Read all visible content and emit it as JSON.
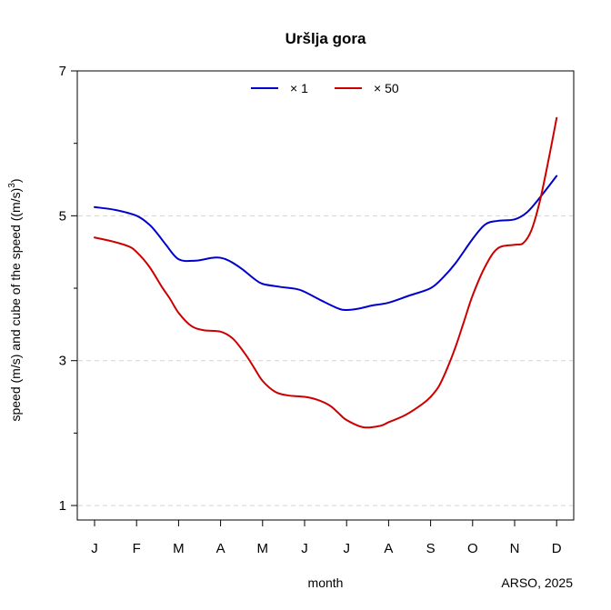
{
  "chart_data": {
    "type": "line",
    "title": "Uršlja gora",
    "xlabel": "month",
    "ylabel": "speed (m/s) and cube of the speed ((m/s)",
    "ylabel_superscript": "3",
    "ylabel_suffix": ")",
    "credit": "ARSO, 2025",
    "categories": [
      "J",
      "F",
      "M",
      "A",
      "M",
      "J",
      "J",
      "A",
      "S",
      "O",
      "N",
      "D"
    ],
    "ylim": [
      0.8,
      7.0
    ],
    "yticks": [
      1,
      3,
      5,
      7
    ],
    "yticks_minor": [
      2,
      4,
      6
    ],
    "gridlines": [
      1,
      3,
      5
    ],
    "legend_position": "top",
    "series": [
      {
        "name": "× 1",
        "color": "#0000cd",
        "x": [
          0,
          0.5,
          1,
          1.3,
          1.5,
          1.7,
          2,
          2.4,
          2.8,
          3,
          3.2,
          3.5,
          3.8,
          4,
          4.4,
          4.8,
          5,
          5.4,
          5.8,
          6,
          6.3,
          6.6,
          7,
          7.5,
          8,
          8.3,
          8.6,
          9,
          9.3,
          9.6,
          10,
          10.3,
          10.6,
          11
        ],
        "values": [
          5.12,
          5.08,
          5.0,
          4.88,
          4.75,
          4.6,
          4.4,
          4.38,
          4.42,
          4.42,
          4.38,
          4.27,
          4.13,
          4.06,
          4.02,
          3.99,
          3.95,
          3.83,
          3.72,
          3.7,
          3.72,
          3.76,
          3.8,
          3.9,
          4.0,
          4.15,
          4.35,
          4.68,
          4.88,
          4.93,
          4.95,
          5.05,
          5.25,
          5.55
        ]
      },
      {
        "name": "× 50",
        "color": "#cd0000",
        "x": [
          0,
          0.4,
          0.8,
          1,
          1.3,
          1.6,
          1.8,
          2,
          2.3,
          2.6,
          3,
          3.3,
          3.6,
          3.8,
          4,
          4.3,
          4.6,
          5,
          5.3,
          5.6,
          5.8,
          6,
          6.4,
          6.8,
          7,
          7.4,
          7.8,
          8,
          8.2,
          8.4,
          8.6,
          8.8,
          9,
          9.3,
          9.6,
          10,
          10.2,
          10.4,
          10.6,
          10.8,
          11
        ],
        "values": [
          4.7,
          4.65,
          4.58,
          4.5,
          4.3,
          4.02,
          3.85,
          3.66,
          3.48,
          3.42,
          3.4,
          3.3,
          3.08,
          2.9,
          2.72,
          2.57,
          2.52,
          2.5,
          2.46,
          2.38,
          2.28,
          2.18,
          2.08,
          2.1,
          2.15,
          2.25,
          2.4,
          2.5,
          2.65,
          2.9,
          3.2,
          3.55,
          3.9,
          4.3,
          4.55,
          4.6,
          4.62,
          4.8,
          5.2,
          5.75,
          6.35
        ]
      }
    ]
  }
}
